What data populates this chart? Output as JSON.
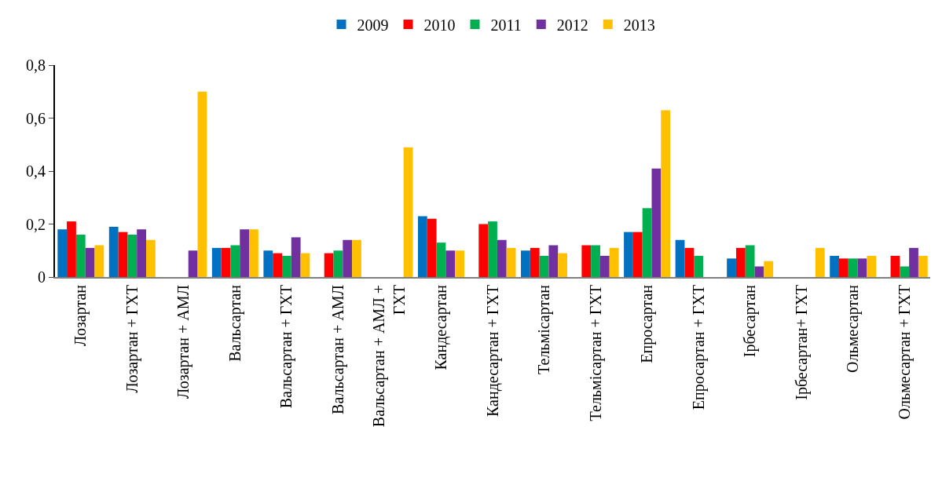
{
  "chart_data": {
    "type": "bar",
    "categories": [
      "Лозартан",
      "Лозартан + ГХТ",
      "Лозартан + АМЛ",
      "Вальсартан",
      "Вальсартан + ГХТ",
      "Вальсартан + АМЛ",
      "Вальсартан + АМЛ +\nГХТ",
      "Кандесартан",
      "Кандесартан + ГХТ",
      "Тельмісартан",
      "Тельмісартан + ГХТ",
      "Епросартан",
      "Епросартан + ГХТ",
      "Ірбесартан",
      "Ірбесартан+ ГХТ",
      "Ольмесартан",
      "Ольмесартан + ГХТ"
    ],
    "series": [
      {
        "name": "2009",
        "color": "#0070c0",
        "values": [
          0.18,
          0.19,
          null,
          0.11,
          0.1,
          null,
          null,
          0.23,
          null,
          0.1,
          null,
          0.17,
          0.14,
          0.07,
          null,
          0.08,
          null
        ]
      },
      {
        "name": "2010",
        "color": "#ff0000",
        "values": [
          0.21,
          0.17,
          null,
          0.11,
          0.09,
          0.09,
          null,
          0.22,
          0.2,
          0.11,
          0.12,
          0.17,
          0.11,
          0.11,
          null,
          0.07,
          0.08
        ]
      },
      {
        "name": "2011",
        "color": "#00b050",
        "values": [
          0.16,
          0.16,
          null,
          0.12,
          0.08,
          0.1,
          null,
          0.13,
          0.21,
          0.08,
          0.12,
          0.26,
          0.08,
          0.12,
          null,
          0.07,
          0.04
        ]
      },
      {
        "name": "2012",
        "color": "#7030a0",
        "values": [
          0.11,
          0.18,
          0.1,
          0.18,
          0.15,
          0.14,
          null,
          0.1,
          0.14,
          0.12,
          0.08,
          0.41,
          null,
          0.04,
          null,
          0.07,
          0.11
        ]
      },
      {
        "name": "2013",
        "color": "#ffc000",
        "values": [
          0.12,
          0.14,
          0.7,
          0.18,
          0.09,
          0.14,
          0.49,
          0.1,
          0.11,
          0.09,
          0.11,
          0.63,
          null,
          0.06,
          0.11,
          0.08,
          0.08
        ]
      }
    ],
    "ylim": [
      0,
      0.8
    ],
    "yticks": [
      0,
      {
        "value": 0.2,
        "label": "0,2"
      },
      {
        "value": 0.4,
        "label": "0,4"
      },
      {
        "value": 0.6,
        "label": "0,6"
      },
      {
        "value": 0.8,
        "label": "0,8"
      }
    ],
    "legend": "top"
  }
}
